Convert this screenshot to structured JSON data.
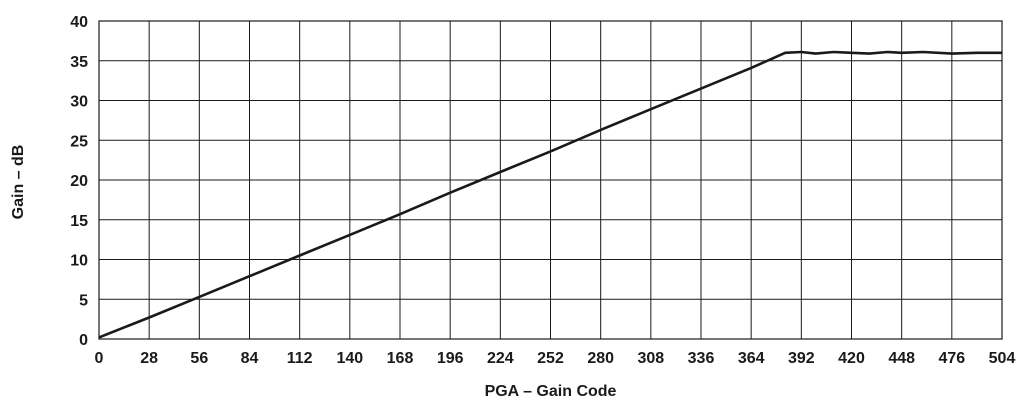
{
  "chart_data": {
    "type": "line",
    "title": "",
    "xlabel": "PGA – Gain Code",
    "ylabel": "Gain – dB",
    "xlim": [
      0,
      504
    ],
    "ylim": [
      0,
      40
    ],
    "xticks": [
      0,
      28,
      56,
      84,
      112,
      140,
      168,
      196,
      224,
      252,
      280,
      308,
      336,
      364,
      392,
      420,
      448,
      476,
      504
    ],
    "yticks": [
      0,
      5,
      10,
      15,
      20,
      25,
      30,
      35,
      40
    ],
    "grid": true,
    "legend": "none",
    "series": [
      {
        "color": "#1a1a1a",
        "x": [
          0,
          28,
          56,
          84,
          112,
          140,
          168,
          196,
          224,
          252,
          280,
          308,
          336,
          364,
          375,
          383,
          392,
          400,
          410,
          420,
          430,
          440,
          448,
          460,
          476,
          490,
          504
        ],
        "y": [
          0.2,
          2.7,
          5.3,
          7.9,
          10.5,
          13.1,
          15.7,
          18.4,
          21.0,
          23.6,
          26.3,
          28.9,
          31.5,
          34.1,
          35.2,
          36.0,
          36.1,
          35.9,
          36.1,
          36.0,
          35.9,
          36.1,
          36.0,
          36.1,
          35.9,
          36.0,
          36.0
        ]
      }
    ]
  }
}
